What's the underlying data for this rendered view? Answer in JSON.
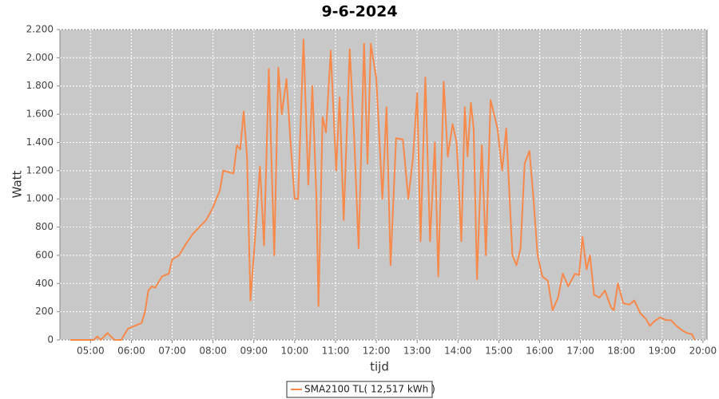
{
  "chart_data": {
    "type": "line",
    "title": "9-6-2024",
    "x_label": "tijd",
    "y_label": "Watt",
    "x": [
      "04:30",
      "05:05",
      "05:10",
      "05:15",
      "05:25",
      "05:35",
      "05:45",
      "05:55",
      "06:05",
      "06:15",
      "06:20",
      "06:25",
      "06:30",
      "06:35",
      "06:45",
      "06:55",
      "07:00",
      "07:10",
      "07:20",
      "07:30",
      "07:40",
      "07:50",
      "08:00",
      "08:10",
      "08:15",
      "08:30",
      "08:35",
      "08:40",
      "08:45",
      "08:50",
      "08:55",
      "09:00",
      "09:09",
      "09:15",
      "09:22",
      "09:30",
      "09:36",
      "09:41",
      "09:48",
      "09:54",
      "10:00",
      "10:05",
      "10:13",
      "10:20",
      "10:26",
      "10:32",
      "10:35",
      "10:41",
      "10:46",
      "10:53",
      "11:01",
      "11:06",
      "11:12",
      "11:21",
      "11:27",
      "11:34",
      "11:42",
      "11:47",
      "11:52",
      "12:00",
      "12:09",
      "12:15",
      "12:21",
      "12:29",
      "12:39",
      "12:47",
      "12:54",
      "13:00",
      "13:05",
      "13:12",
      "13:19",
      "13:26",
      "13:31",
      "13:39",
      "13:45",
      "13:52",
      "13:58",
      "14:05",
      "14:10",
      "14:14",
      "14:19",
      "14:23",
      "14:28",
      "14:35",
      "14:41",
      "14:48",
      "14:58",
      "15:05",
      "15:11",
      "15:20",
      "15:26",
      "15:32",
      "15:38",
      "15:45",
      "15:51",
      "15:57",
      "16:04",
      "16:12",
      "16:19",
      "16:27",
      "16:34",
      "16:42",
      "16:52",
      "16:58",
      "17:03",
      "17:09",
      "17:14",
      "17:20",
      "17:28",
      "17:36",
      "17:45",
      "17:49",
      "17:55",
      "18:03",
      "18:12",
      "18:19",
      "18:28",
      "18:36",
      "18:42",
      "18:48",
      "18:57",
      "19:06",
      "19:13",
      "19:21",
      "19:29",
      "19:36",
      "19:44",
      "19:48"
    ],
    "series": [
      {
        "name": "SMA2100 TL( 12,517 kWh )",
        "color": "#f7894a",
        "values": [
          0,
          0,
          25,
          0,
          50,
          0,
          0,
          80,
          100,
          120,
          200,
          350,
          380,
          370,
          450,
          470,
          570,
          600,
          680,
          750,
          800,
          850,
          940,
          1060,
          1200,
          1180,
          1380,
          1350,
          1620,
          1300,
          280,
          600,
          1230,
          670,
          1920,
          600,
          1930,
          1600,
          1850,
          1400,
          1000,
          1000,
          2130,
          1100,
          1800,
          1000,
          240,
          1580,
          1470,
          2050,
          1200,
          1720,
          850,
          2060,
          1500,
          650,
          2100,
          1250,
          2100,
          1850,
          1000,
          1650,
          530,
          1430,
          1420,
          1000,
          1300,
          1750,
          700,
          1860,
          700,
          1400,
          450,
          1830,
          1300,
          1530,
          1400,
          700,
          1650,
          1300,
          1680,
          1500,
          430,
          1380,
          600,
          1700,
          1500,
          1200,
          1500,
          600,
          530,
          650,
          1250,
          1340,
          1000,
          600,
          450,
          420,
          210,
          300,
          470,
          380,
          470,
          460,
          730,
          500,
          600,
          320,
          300,
          350,
          230,
          210,
          400,
          260,
          250,
          280,
          190,
          150,
          100,
          130,
          160,
          140,
          140,
          100,
          70,
          50,
          40,
          0
        ]
      }
    ],
    "xlim": [
      "04:15",
      "20:06"
    ],
    "xticks": [
      "05:00",
      "06:00",
      "07:00",
      "08:00",
      "09:00",
      "10:00",
      "11:00",
      "12:00",
      "13:00",
      "14:00",
      "15:00",
      "16:00",
      "17:00",
      "18:00",
      "19:00",
      "20:00"
    ],
    "ylim": [
      0,
      2200
    ],
    "yticks": [
      0,
      200,
      400,
      600,
      800,
      {
        "value": 1000,
        "label": "1.000"
      },
      {
        "value": 1200,
        "label": "1.200"
      },
      {
        "value": 1400,
        "label": "1.400"
      },
      {
        "value": 1600,
        "label": "1.600"
      },
      {
        "value": 1800,
        "label": "1.800"
      },
      {
        "value": 2000,
        "label": "2.000"
      },
      {
        "value": 2200,
        "label": "2.200"
      }
    ],
    "grid": true
  }
}
